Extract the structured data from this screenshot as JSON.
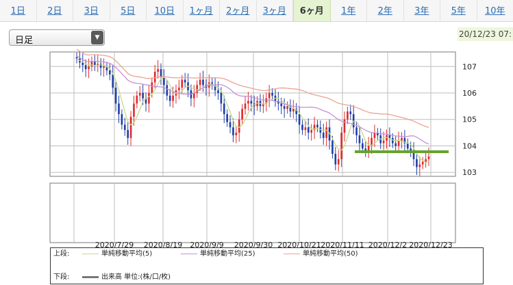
{
  "tabs": [
    {
      "label": "1日",
      "active": false
    },
    {
      "label": "2日",
      "active": false
    },
    {
      "label": "3日",
      "active": false
    },
    {
      "label": "5日",
      "active": false
    },
    {
      "label": "10日",
      "active": false
    },
    {
      "label": "1ヶ月",
      "active": false
    },
    {
      "label": "2ヶ月",
      "active": false
    },
    {
      "label": "3ヶ月",
      "active": false
    },
    {
      "label": "6ヶ月",
      "active": true
    },
    {
      "label": "1年",
      "active": false
    },
    {
      "label": "2年",
      "active": false
    },
    {
      "label": "3年",
      "active": false
    },
    {
      "label": "5年",
      "active": false
    },
    {
      "label": "10年",
      "active": false
    }
  ],
  "select": {
    "value": "日足"
  },
  "timestamp": "20/12/23 07:",
  "legend": {
    "upper_label": "上段:",
    "lower_label": "下段:",
    "upper_items": [
      {
        "label": "単純移動平均(5)",
        "color": "#c6d98a"
      },
      {
        "label": "単純移動平均(25)",
        "color": "#c690d8"
      },
      {
        "label": "単純移動平均(50)",
        "color": "#eba390"
      }
    ],
    "lower_items": [
      {
        "label": "出来高 単位:(株/口/枚)",
        "color": "#777777"
      }
    ]
  },
  "colors": {
    "up": "#e02a2a",
    "down": "#1f3fa8",
    "ma5": "#c6d98a",
    "ma25": "#c690d8",
    "ma50": "#eba390",
    "hline": "#66a32e",
    "grid": "#bdbdbd"
  },
  "chart_data": {
    "type": "candlestick",
    "x_tick_labels": [
      "2020/7/29",
      "2020/8/19",
      "2020/9/9",
      "2020/9/30",
      "2020/10/21",
      "2020/11/11",
      "2020/12/2",
      "2020/12/23"
    ],
    "y_ticks": [
      103,
      104,
      105,
      106,
      107
    ],
    "ylim": [
      102.85,
      107.55
    ],
    "grid": true,
    "horizontal_line": 103.78,
    "close": [
      107.3,
      107.15,
      107.05,
      106.9,
      107.0,
      107.2,
      107.05,
      107.1,
      106.95,
      107.0,
      106.85,
      106.7,
      106.2,
      105.6,
      105.2,
      104.8,
      104.6,
      104.3,
      105.1,
      105.6,
      105.9,
      106.0,
      105.8,
      105.6,
      106.0,
      106.4,
      106.8,
      106.9,
      106.6,
      106.3,
      105.9,
      105.7,
      105.9,
      106.1,
      106.2,
      106.5,
      106.4,
      106.1,
      105.8,
      106.0,
      106.3,
      106.5,
      106.3,
      106.2,
      106.4,
      106.3,
      106.1,
      106.0,
      105.6,
      105.2,
      104.9,
      104.7,
      104.4,
      104.5,
      105.0,
      105.4,
      105.6,
      105.7,
      105.6,
      105.5,
      105.7,
      105.5,
      105.6,
      105.8,
      106.0,
      105.9,
      105.7,
      105.6,
      105.5,
      105.4,
      105.5,
      105.3,
      105.4,
      105.2,
      104.8,
      104.6,
      104.7,
      104.5,
      104.6,
      104.8,
      104.7,
      104.5,
      104.3,
      104.7,
      104.2,
      103.7,
      103.3,
      103.5,
      104.5,
      105.0,
      105.3,
      105.2,
      104.7,
      104.4,
      104.1,
      103.9,
      103.8,
      104.0,
      104.3,
      104.5,
      104.4,
      104.1,
      104.2,
      104.4,
      104.3,
      104.1,
      104.0,
      104.2,
      104.3,
      104.1,
      103.9,
      103.8,
      103.5,
      103.2,
      103.3,
      103.4,
      103.5,
      103.6
    ]
  }
}
